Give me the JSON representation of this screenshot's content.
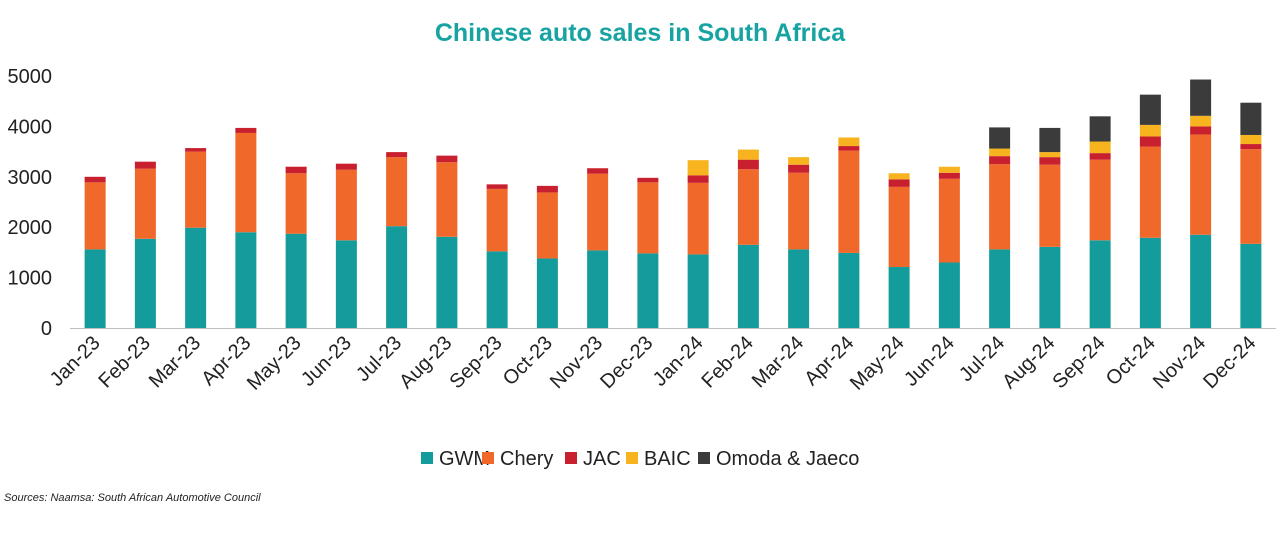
{
  "chart_data": {
    "type": "bar",
    "stacked": true,
    "title": "Chinese auto sales in South Africa",
    "source": "Sources: Naamsa: South African Automotive Council",
    "xlabel": "",
    "ylabel": "",
    "ylim": [
      0,
      5000
    ],
    "yticks": [
      "0",
      "1000",
      "2000",
      "3000",
      "4000",
      "5000"
    ],
    "grid": false,
    "legend_position": "bottom",
    "categories": [
      "Jan-23",
      "Feb-23",
      "Mar-23",
      "Apr-23",
      "May-23",
      "Jun-23",
      "Jul-23",
      "Aug-23",
      "Sep-23",
      "Oct-23",
      "Nov-23",
      "Dec-23",
      "Jan-24",
      "Feb-24",
      "Mar-24",
      "Apr-24",
      "May-24",
      "Jun-24",
      "Jul-24",
      "Aug-24",
      "Sep-24",
      "Oct-24",
      "Nov-24",
      "Dec-24"
    ],
    "series": [
      {
        "name": "GWM",
        "color": "#149c9c",
        "values": [
          1560,
          1770,
          1990,
          1900,
          1870,
          1740,
          2020,
          1810,
          1520,
          1380,
          1540,
          1480,
          1460,
          1650,
          1560,
          1490,
          1210,
          1300,
          1560,
          1610,
          1740,
          1790,
          1850,
          1670
        ]
      },
      {
        "name": "Chery",
        "color": "#f0682a",
        "values": [
          1330,
          1390,
          1510,
          1970,
          1200,
          1400,
          1370,
          1480,
          1240,
          1310,
          1520,
          1410,
          1420,
          1500,
          1520,
          2030,
          1590,
          1660,
          1690,
          1630,
          1600,
          1810,
          1990,
          1880
        ]
      },
      {
        "name": "JAC",
        "color": "#c8202e",
        "values": [
          110,
          140,
          70,
          100,
          130,
          120,
          100,
          130,
          90,
          130,
          110,
          90,
          150,
          190,
          160,
          90,
          150,
          120,
          160,
          150,
          130,
          200,
          160,
          100
        ]
      },
      {
        "name": "BAIC",
        "color": "#f7b41f",
        "values": [
          0,
          0,
          0,
          0,
          0,
          0,
          0,
          0,
          0,
          0,
          0,
          0,
          300,
          200,
          150,
          170,
          120,
          120,
          150,
          100,
          230,
          230,
          210,
          180
        ]
      },
      {
        "name": "Omoda & Jaeco",
        "color": "#3b3b3b",
        "values": [
          0,
          0,
          0,
          0,
          0,
          0,
          0,
          0,
          0,
          0,
          0,
          0,
          0,
          0,
          0,
          0,
          0,
          0,
          420,
          480,
          500,
          600,
          720,
          640
        ]
      }
    ]
  },
  "colors": {
    "title": "#18a3a3",
    "axis": "#bfbfbf"
  }
}
